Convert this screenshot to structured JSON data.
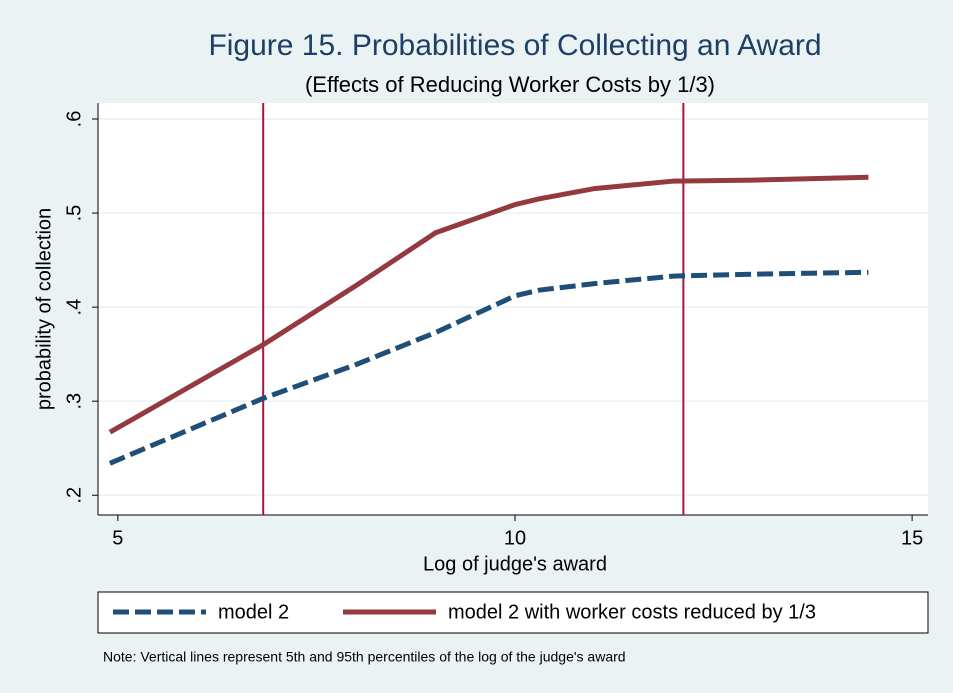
{
  "chart_data": {
    "type": "line",
    "title": "Figure 15. Probabilities of Collecting an Award",
    "subtitle": "(Effects of Reducing Worker Costs by 1/3)",
    "x_label": "Log of judge's award",
    "y_label": "probability of collection",
    "note": "Note: Vertical lines represent 5th and 95th percentiles of the log of the judge's award",
    "xlim": [
      4.75,
      15.2
    ],
    "ylim": [
      0.179,
      0.617
    ],
    "xticks": [
      5,
      10,
      15
    ],
    "yticks": [
      {
        "value": 0.2,
        "label": ".2"
      },
      {
        "value": 0.3,
        "label": ".3"
      },
      {
        "value": 0.4,
        "label": ".4"
      },
      {
        "value": 0.5,
        "label": ".5"
      },
      {
        "value": 0.6,
        "label": ".6"
      }
    ],
    "grid": true,
    "vlines": [
      6.83,
      12.12
    ],
    "vline_color": "#a3173a",
    "legend_position": "bottom",
    "series": [
      {
        "name": "model 2",
        "color": "#1f4e79",
        "dashed": true,
        "x": [
          4.9,
          6.83,
          8,
          9,
          10,
          10.3,
          11,
          12,
          13,
          14.45
        ],
        "values": [
          0.234,
          0.303,
          0.339,
          0.373,
          0.412,
          0.418,
          0.425,
          0.433,
          0.435,
          0.437
        ]
      },
      {
        "name": "model 2 with worker costs reduced by 1/3",
        "color": "#943a3e",
        "dashed": false,
        "x": [
          4.9,
          6.83,
          8,
          9,
          10,
          10.3,
          11,
          12,
          13,
          14.45
        ],
        "values": [
          0.267,
          0.36,
          0.423,
          0.479,
          0.509,
          0.515,
          0.526,
          0.534,
          0.535,
          0.538
        ]
      }
    ]
  }
}
